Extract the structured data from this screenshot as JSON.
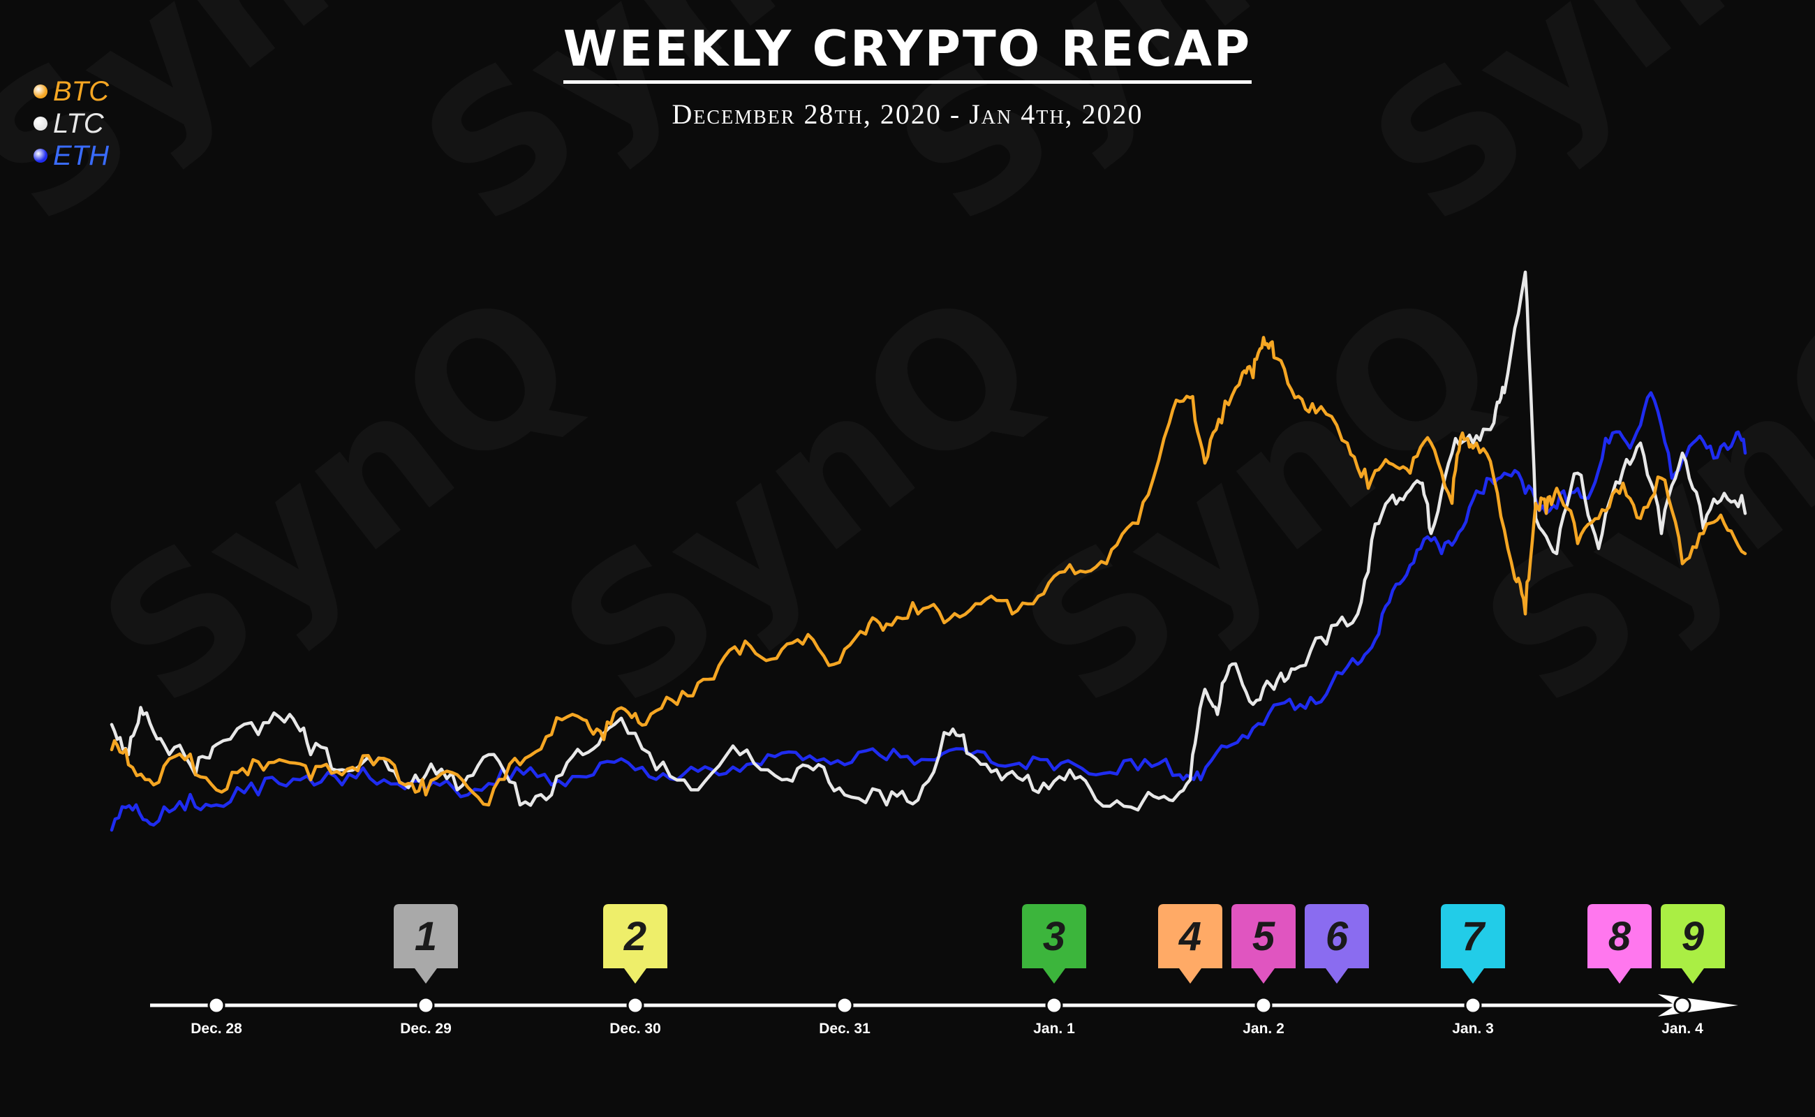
{
  "title": "WEEKLY CRYPTO RECAP",
  "subtitle": "December 28th, 2020 - Jan 4th, 2020",
  "legend": [
    {
      "label": "BTC",
      "color": "#f5a623",
      "text_color": "#f5a623"
    },
    {
      "label": "LTC",
      "color": "#e8e8e8",
      "text_color": "#e8e8e8"
    },
    {
      "label": "ETH",
      "color": "#1f2cf0",
      "text_color": "#3a6cff"
    }
  ],
  "watermark": "SynQ",
  "timeline": {
    "ticks": [
      "Dec. 28",
      "Dec. 29",
      "Dec. 30",
      "Dec. 31",
      "Jan. 1",
      "Jan. 2",
      "Jan. 3",
      "Jan. 4"
    ],
    "markers": [
      {
        "label": "1",
        "day": 1.0,
        "color": "#a9a9a9"
      },
      {
        "label": "2",
        "day": 2.0,
        "color": "#eeee6a"
      },
      {
        "label": "3",
        "day": 4.0,
        "color": "#3cb53c"
      },
      {
        "label": "4",
        "day": 4.65,
        "color": "#ffaa66"
      },
      {
        "label": "5",
        "day": 5.0,
        "color": "#e055c0"
      },
      {
        "label": "6",
        "day": 5.35,
        "color": "#8a6cf0"
      },
      {
        "label": "7",
        "day": 6.0,
        "color": "#22cce8"
      },
      {
        "label": "8",
        "day": 6.7,
        "color": "#ff77ee"
      },
      {
        "label": "9",
        "day": 7.05,
        "color": "#aaee44"
      }
    ]
  },
  "chart_data": {
    "type": "line",
    "title": "WEEKLY CRYPTO RECAP",
    "x_unit": "days since Dec. 28",
    "xlim": [
      -0.5,
      7.4
    ],
    "ylim": [
      0,
      100
    ],
    "grid": false,
    "legend_position": "top-left",
    "series": [
      {
        "name": "BTC",
        "color": "#f5a623",
        "x": [
          -0.5,
          -0.42,
          -0.3,
          -0.15,
          0.0,
          0.15,
          0.3,
          0.45,
          0.6,
          0.75,
          0.9,
          1.0,
          1.15,
          1.3,
          1.45,
          1.6,
          1.75,
          1.85,
          1.95,
          2.05,
          2.2,
          2.35,
          2.5,
          2.65,
          2.8,
          2.95,
          3.1,
          3.2,
          3.35,
          3.5,
          3.65,
          3.8,
          3.95,
          4.1,
          4.25,
          4.4,
          4.55,
          4.65,
          4.72,
          4.8,
          4.9,
          4.95,
          5.0,
          5.05,
          5.15,
          5.25,
          5.4,
          5.5,
          5.6,
          5.7,
          5.8,
          5.9,
          5.95,
          6.0,
          6.1,
          6.2,
          6.25,
          6.3,
          6.35,
          6.4,
          6.5,
          6.6,
          6.7,
          6.8,
          6.9,
          7.0,
          7.1,
          7.2,
          7.3
        ],
        "y": [
          21,
          18,
          14,
          19,
          13,
          16,
          19,
          15,
          16,
          18,
          14,
          12,
          16,
          10,
          18,
          24,
          27,
          23,
          29,
          26,
          30,
          35,
          40,
          39,
          42,
          38,
          44,
          46,
          48,
          47,
          50,
          48,
          52,
          56,
          58,
          66,
          86,
          91,
          78,
          86,
          96,
          95,
          103,
          99,
          91,
          88,
          82,
          73,
          78,
          76,
          82,
          70,
          84,
          81,
          75,
          55,
          48,
          70,
          68,
          73,
          62,
          67,
          72,
          67,
          75,
          58,
          64,
          66,
          60
        ]
      },
      {
        "name": "LTC",
        "color": "#e8e8e8",
        "x": [
          -0.5,
          -0.42,
          -0.35,
          -0.25,
          -0.1,
          0.0,
          0.2,
          0.35,
          0.45,
          0.6,
          0.75,
          0.9,
          1.0,
          1.15,
          1.3,
          1.45,
          1.6,
          1.75,
          1.9,
          2.1,
          2.3,
          2.5,
          2.7,
          2.85,
          3.0,
          3.2,
          3.35,
          3.5,
          3.6,
          3.75,
          3.9,
          4.05,
          4.2,
          4.4,
          4.55,
          4.65,
          4.72,
          4.78,
          4.85,
          4.95,
          5.05,
          5.15,
          5.3,
          5.45,
          5.55,
          5.65,
          5.75,
          5.8,
          5.9,
          6.0,
          6.1,
          6.15,
          6.25,
          6.3,
          6.4,
          6.5,
          6.6,
          6.7,
          6.8,
          6.9,
          7.0,
          7.1,
          7.2,
          7.3
        ],
        "y": [
          26,
          20,
          28,
          22,
          16,
          22,
          24,
          28,
          20,
          17,
          18,
          14,
          16,
          13,
          20,
          10,
          12,
          20,
          26,
          17,
          13,
          20,
          15,
          17,
          12,
          10,
          11,
          24,
          20,
          15,
          13,
          15,
          11,
          9,
          11,
          15,
          33,
          28,
          38,
          30,
          33,
          37,
          42,
          48,
          66,
          71,
          74,
          64,
          80,
          82,
          86,
          92,
          116,
          67,
          60,
          76,
          61,
          74,
          82,
          64,
          80,
          65,
          72,
          68
        ]
      },
      {
        "name": "ETH",
        "color": "#1f2cf0",
        "x": [
          -0.5,
          -0.4,
          -0.3,
          -0.15,
          0.0,
          0.2,
          0.4,
          0.6,
          0.8,
          1.0,
          1.2,
          1.4,
          1.6,
          1.8,
          2.0,
          2.2,
          2.4,
          2.6,
          2.8,
          3.0,
          3.2,
          3.4,
          3.6,
          3.8,
          4.0,
          4.2,
          4.4,
          4.6,
          4.7,
          4.85,
          5.0,
          5.15,
          5.3,
          5.45,
          5.55,
          5.65,
          5.75,
          5.85,
          5.95,
          6.05,
          6.15,
          6.25,
          6.35,
          6.45,
          6.55,
          6.65,
          6.75,
          6.85,
          6.95,
          7.05,
          7.15,
          7.25,
          7.3
        ],
        "y": [
          5,
          9,
          6,
          9,
          10,
          12,
          15,
          14,
          15,
          13,
          12,
          15,
          14,
          16,
          17,
          15,
          16,
          18,
          19,
          18,
          19,
          19,
          20,
          18,
          17,
          16,
          17,
          16,
          15,
          22,
          26,
          29,
          32,
          38,
          44,
          54,
          61,
          60,
          65,
          72,
          76,
          72,
          68,
          70,
          71,
          82,
          81,
          92,
          75,
          82,
          79,
          83,
          80
        ]
      }
    ]
  }
}
